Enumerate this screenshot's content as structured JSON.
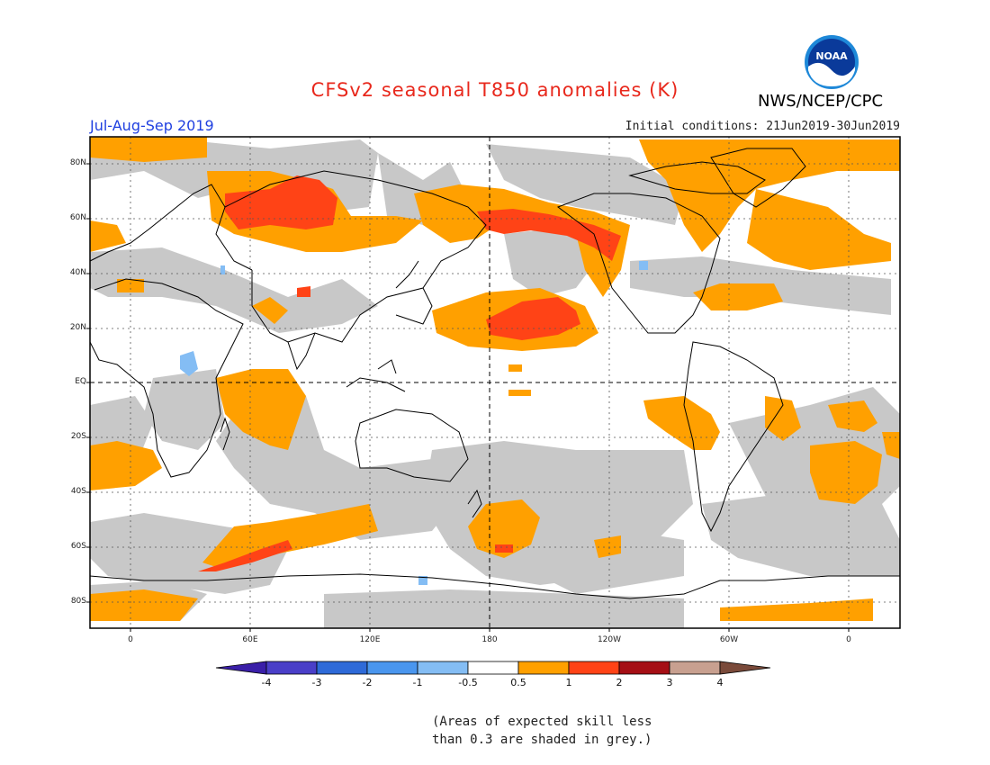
{
  "title": "CFSv2 seasonal T850 anomalies (K)",
  "agency": "NWS/NCEP/CPC",
  "logo_text": "NOAA",
  "season": "Jul-Aug-Sep 2019",
  "initial_conditions": "Initial conditions: 21Jun2019-30Jun2019",
  "lat_labels": [
    "80N",
    "60N",
    "40N",
    "20N",
    "EQ",
    "20S",
    "40S",
    "60S",
    "80S"
  ],
  "lon_labels": [
    "0",
    "60E",
    "120E",
    "180",
    "120W",
    "60W",
    "0"
  ],
  "colorbar": {
    "labels": [
      "-4",
      "-3",
      "-2",
      "-1",
      "-0.5",
      "0.5",
      "1",
      "2",
      "3",
      "4"
    ],
    "colors": [
      "#3a1fa8",
      "#4a3fc8",
      "#2e6ad8",
      "#4a96ee",
      "#84bdf4",
      "#ffffff",
      "#ffa000",
      "#ff4316",
      "#a50f15",
      "#c8a090",
      "#7a4a3a"
    ],
    "skill_grey": "#c8c8c8"
  },
  "note_line1": "(Areas of expected skill less",
  "note_line2": "than 0.3 are shaded in grey.)"
}
